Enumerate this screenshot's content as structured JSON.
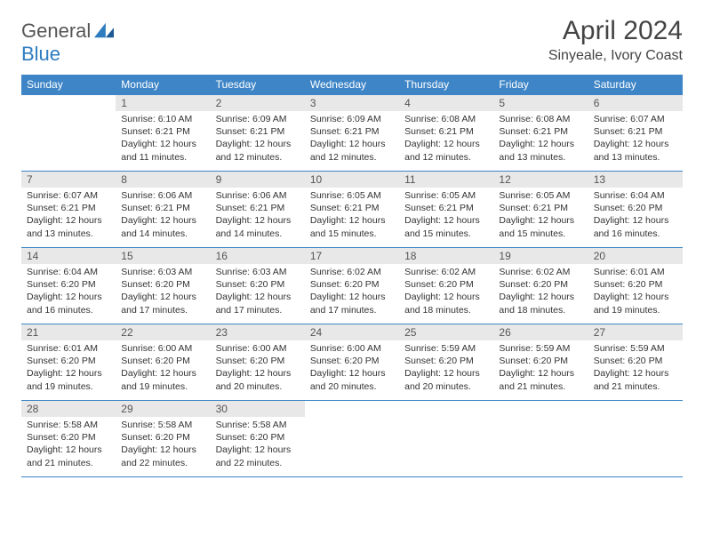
{
  "logo": {
    "general": "General",
    "blue": "Blue"
  },
  "title": "April 2024",
  "location": "Sinyeale, Ivory Coast",
  "colors": {
    "header_bg": "#3d85c6",
    "header_text": "#ffffff",
    "daynum_bg": "#e8e8e8",
    "rule": "#3d85c6",
    "logo_blue": "#2e7cc0",
    "page_bg": "#ffffff"
  },
  "typography": {
    "month_fontsize": 30,
    "location_fontsize": 16,
    "dayheader_fontsize": 12,
    "body_fontsize": 10.5
  },
  "weekdays": [
    "Sunday",
    "Monday",
    "Tuesday",
    "Wednesday",
    "Thursday",
    "Friday",
    "Saturday"
  ],
  "first_weekday_index": 1,
  "days": [
    {
      "n": 1,
      "sunrise": "6:10 AM",
      "sunset": "6:21 PM",
      "daylight": "12 hours and 11 minutes."
    },
    {
      "n": 2,
      "sunrise": "6:09 AM",
      "sunset": "6:21 PM",
      "daylight": "12 hours and 12 minutes."
    },
    {
      "n": 3,
      "sunrise": "6:09 AM",
      "sunset": "6:21 PM",
      "daylight": "12 hours and 12 minutes."
    },
    {
      "n": 4,
      "sunrise": "6:08 AM",
      "sunset": "6:21 PM",
      "daylight": "12 hours and 12 minutes."
    },
    {
      "n": 5,
      "sunrise": "6:08 AM",
      "sunset": "6:21 PM",
      "daylight": "12 hours and 13 minutes."
    },
    {
      "n": 6,
      "sunrise": "6:07 AM",
      "sunset": "6:21 PM",
      "daylight": "12 hours and 13 minutes."
    },
    {
      "n": 7,
      "sunrise": "6:07 AM",
      "sunset": "6:21 PM",
      "daylight": "12 hours and 13 minutes."
    },
    {
      "n": 8,
      "sunrise": "6:06 AM",
      "sunset": "6:21 PM",
      "daylight": "12 hours and 14 minutes."
    },
    {
      "n": 9,
      "sunrise": "6:06 AM",
      "sunset": "6:21 PM",
      "daylight": "12 hours and 14 minutes."
    },
    {
      "n": 10,
      "sunrise": "6:05 AM",
      "sunset": "6:21 PM",
      "daylight": "12 hours and 15 minutes."
    },
    {
      "n": 11,
      "sunrise": "6:05 AM",
      "sunset": "6:21 PM",
      "daylight": "12 hours and 15 minutes."
    },
    {
      "n": 12,
      "sunrise": "6:05 AM",
      "sunset": "6:21 PM",
      "daylight": "12 hours and 15 minutes."
    },
    {
      "n": 13,
      "sunrise": "6:04 AM",
      "sunset": "6:20 PM",
      "daylight": "12 hours and 16 minutes."
    },
    {
      "n": 14,
      "sunrise": "6:04 AM",
      "sunset": "6:20 PM",
      "daylight": "12 hours and 16 minutes."
    },
    {
      "n": 15,
      "sunrise": "6:03 AM",
      "sunset": "6:20 PM",
      "daylight": "12 hours and 17 minutes."
    },
    {
      "n": 16,
      "sunrise": "6:03 AM",
      "sunset": "6:20 PM",
      "daylight": "12 hours and 17 minutes."
    },
    {
      "n": 17,
      "sunrise": "6:02 AM",
      "sunset": "6:20 PM",
      "daylight": "12 hours and 17 minutes."
    },
    {
      "n": 18,
      "sunrise": "6:02 AM",
      "sunset": "6:20 PM",
      "daylight": "12 hours and 18 minutes."
    },
    {
      "n": 19,
      "sunrise": "6:02 AM",
      "sunset": "6:20 PM",
      "daylight": "12 hours and 18 minutes."
    },
    {
      "n": 20,
      "sunrise": "6:01 AM",
      "sunset": "6:20 PM",
      "daylight": "12 hours and 19 minutes."
    },
    {
      "n": 21,
      "sunrise": "6:01 AM",
      "sunset": "6:20 PM",
      "daylight": "12 hours and 19 minutes."
    },
    {
      "n": 22,
      "sunrise": "6:00 AM",
      "sunset": "6:20 PM",
      "daylight": "12 hours and 19 minutes."
    },
    {
      "n": 23,
      "sunrise": "6:00 AM",
      "sunset": "6:20 PM",
      "daylight": "12 hours and 20 minutes."
    },
    {
      "n": 24,
      "sunrise": "6:00 AM",
      "sunset": "6:20 PM",
      "daylight": "12 hours and 20 minutes."
    },
    {
      "n": 25,
      "sunrise": "5:59 AM",
      "sunset": "6:20 PM",
      "daylight": "12 hours and 20 minutes."
    },
    {
      "n": 26,
      "sunrise": "5:59 AM",
      "sunset": "6:20 PM",
      "daylight": "12 hours and 21 minutes."
    },
    {
      "n": 27,
      "sunrise": "5:59 AM",
      "sunset": "6:20 PM",
      "daylight": "12 hours and 21 minutes."
    },
    {
      "n": 28,
      "sunrise": "5:58 AM",
      "sunset": "6:20 PM",
      "daylight": "12 hours and 21 minutes."
    },
    {
      "n": 29,
      "sunrise": "5:58 AM",
      "sunset": "6:20 PM",
      "daylight": "12 hours and 22 minutes."
    },
    {
      "n": 30,
      "sunrise": "5:58 AM",
      "sunset": "6:20 PM",
      "daylight": "12 hours and 22 minutes."
    }
  ],
  "labels": {
    "sunrise": "Sunrise:",
    "sunset": "Sunset:",
    "daylight": "Daylight:"
  }
}
